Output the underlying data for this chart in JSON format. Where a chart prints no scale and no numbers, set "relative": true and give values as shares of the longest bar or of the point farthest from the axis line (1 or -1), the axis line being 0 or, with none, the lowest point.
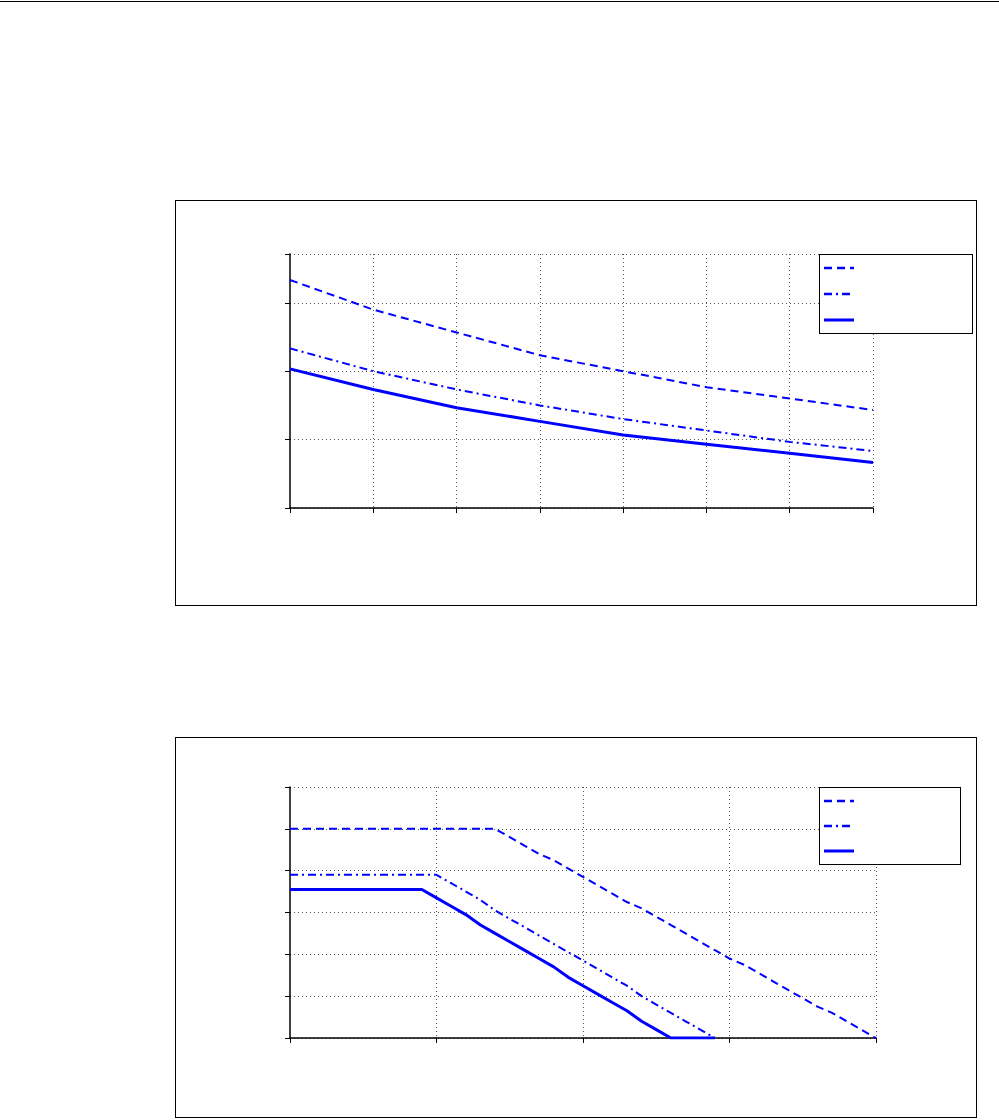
{
  "chart_data": [
    {
      "type": "line",
      "relative": true,
      "grid": true,
      "marker": "none",
      "categories": [
        null,
        null,
        null,
        null,
        null,
        null,
        null,
        null
      ],
      "series": [
        {
          "color": "#0000ff",
          "line_style": "dashed",
          "values": [
            1,
            0.87,
            0.77,
            0.67,
            0.6,
            0.53,
            0.48,
            0.43
          ]
        },
        {
          "color": "#0000ff",
          "line_style": "dashdot",
          "values": [
            0.7,
            0.6,
            0.52,
            0.45,
            0.39,
            0.34,
            0.29,
            0.25
          ]
        },
        {
          "color": "#0000ff",
          "line_style": "solid",
          "values": [
            0.61,
            0.52,
            0.44,
            0.38,
            0.32,
            0.28,
            0.24,
            0.2
          ]
        }
      ]
    },
    {
      "type": "line",
      "relative": true,
      "grid": true,
      "marker": "none",
      "categories": [
        null,
        null,
        null,
        null,
        null,
        null,
        null,
        null,
        null,
        null,
        null,
        null,
        null,
        null,
        null,
        null,
        null,
        null,
        null,
        null,
        null,
        null,
        null,
        null,
        null,
        null,
        null,
        null,
        null,
        null,
        null,
        null,
        null,
        null,
        null,
        null,
        null,
        null,
        null,
        null,
        null
      ],
      "series": [
        {
          "color": "#0000ff",
          "line_style": "dashed",
          "values": [
            1,
            1,
            1,
            1,
            1,
            1,
            1,
            1,
            1,
            1,
            1,
            1,
            1,
            1,
            1,
            0.96,
            0.92,
            0.88,
            0.85,
            0.81,
            0.77,
            0.73,
            0.69,
            0.65,
            0.62,
            0.58,
            0.54,
            0.5,
            0.46,
            0.42,
            0.38,
            0.35,
            0.31,
            0.27,
            0.23,
            0.19,
            0.15,
            0.12,
            0.08,
            0.04,
            0
          ]
        },
        {
          "color": "#0000ff",
          "line_style": "dashdot",
          "values": [
            0.78,
            0.78,
            0.78,
            0.78,
            0.78,
            0.78,
            0.78,
            0.78,
            0.78,
            0.78,
            0.78,
            0.74,
            0.7,
            0.66,
            0.61,
            0.57,
            0.53,
            0.49,
            0.45,
            0.41,
            0.37,
            0.33,
            0.29,
            0.25,
            0.2,
            0.16,
            0.12,
            0.08,
            0.04,
            0,
            null,
            null,
            null,
            null,
            null,
            null,
            null,
            null,
            null,
            null,
            null
          ]
        },
        {
          "color": "#0000ff",
          "line_style": "solid",
          "values": [
            0.71,
            0.71,
            0.71,
            0.71,
            0.71,
            0.71,
            0.71,
            0.71,
            0.71,
            0.71,
            0.67,
            0.63,
            0.59,
            0.54,
            0.5,
            0.46,
            0.42,
            0.38,
            0.34,
            0.29,
            0.25,
            0.21,
            0.17,
            0.13,
            0.08,
            0.04,
            0,
            0,
            0,
            0,
            null,
            null,
            null,
            null,
            null,
            null,
            null,
            null,
            null,
            null,
            null
          ]
        }
      ]
    }
  ]
}
